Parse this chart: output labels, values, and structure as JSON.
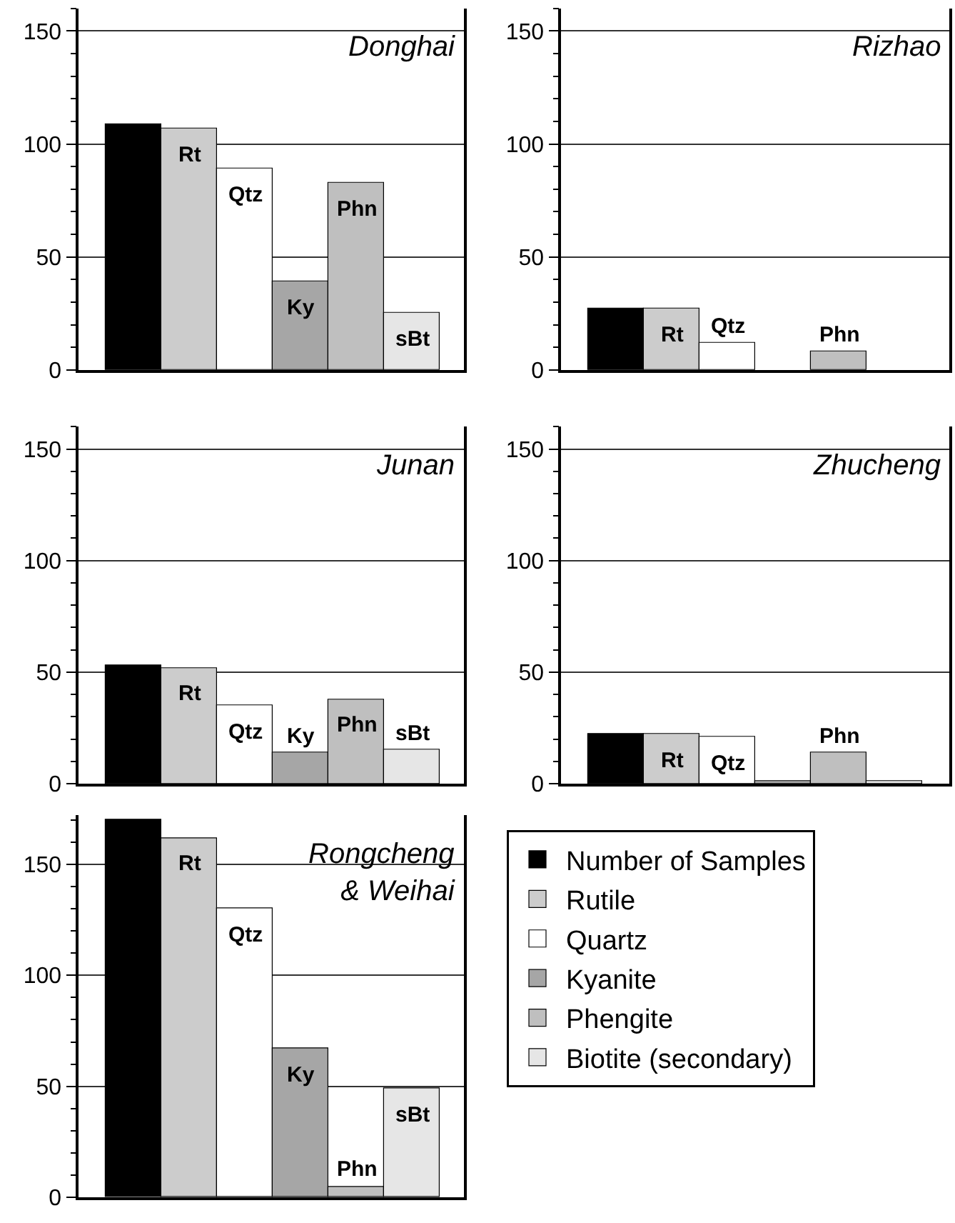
{
  "chart_data": [
    {
      "type": "bar",
      "title": "Donghai",
      "categories": [
        null,
        null,
        null,
        null,
        null,
        null
      ],
      "ylim": [
        0,
        160
      ],
      "yticks": [
        0,
        50,
        100,
        150
      ],
      "grid": "y",
      "series": [
        {
          "color": "#000000",
          "values": [
            109,
            null,
            null,
            null,
            null,
            null
          ]
        },
        {
          "color": "#cccccc",
          "values": [
            null,
            107,
            null,
            null,
            null,
            null
          ],
          "value_labels": [
            null,
            "Rt",
            null,
            null,
            null,
            null
          ]
        },
        {
          "color": "#ffffff",
          "values": [
            null,
            null,
            89,
            null,
            null,
            null
          ],
          "value_labels": [
            null,
            null,
            "Qtz",
            null,
            null,
            null
          ]
        },
        {
          "color": "#a6a6a6",
          "values": [
            null,
            null,
            null,
            39,
            null,
            null
          ],
          "value_labels": [
            null,
            null,
            null,
            "Ky",
            null,
            null
          ]
        },
        {
          "color": "#bfbfbf",
          "values": [
            null,
            null,
            null,
            null,
            83,
            null
          ],
          "value_labels": [
            null,
            null,
            null,
            null,
            "Phn",
            null
          ]
        },
        {
          "color": "#e6e6e6",
          "values": [
            null,
            null,
            null,
            null,
            null,
            25
          ],
          "value_labels": [
            null,
            null,
            null,
            null,
            null,
            "sBt"
          ]
        }
      ]
    },
    {
      "type": "bar",
      "title": "Rizhao",
      "categories": [
        null,
        null,
        null,
        null,
        null,
        null
      ],
      "ylim": [
        0,
        160
      ],
      "yticks": [
        0,
        50,
        100,
        150
      ],
      "grid": "y",
      "series": [
        {
          "color": "#000000",
          "values": [
            27,
            null,
            null,
            null,
            null,
            null
          ]
        },
        {
          "color": "#cccccc",
          "values": [
            null,
            27,
            null,
            null,
            null,
            null
          ],
          "value_labels": [
            null,
            "Rt",
            null,
            null,
            null,
            null
          ]
        },
        {
          "color": "#ffffff",
          "values": [
            null,
            null,
            12,
            null,
            null,
            null
          ],
          "value_labels": [
            null,
            null,
            "Qtz",
            null,
            null,
            null
          ]
        },
        {
          "color": "#bfbfbf",
          "values": [
            null,
            null,
            null,
            null,
            8,
            null
          ],
          "value_labels": [
            null,
            null,
            null,
            null,
            "Phn",
            null
          ]
        }
      ]
    },
    {
      "type": "bar",
      "title": "Junan",
      "categories": [
        null,
        null,
        null,
        null,
        null,
        null
      ],
      "ylim": [
        0,
        160
      ],
      "yticks": [
        0,
        50,
        100,
        150
      ],
      "grid": "y",
      "series": [
        {
          "color": "#000000",
          "values": [
            53,
            null,
            null,
            null,
            null,
            null
          ]
        },
        {
          "color": "#cccccc",
          "values": [
            null,
            52,
            null,
            null,
            null,
            null
          ],
          "value_labels": [
            null,
            "Rt",
            null,
            null,
            null,
            null
          ]
        },
        {
          "color": "#ffffff",
          "values": [
            null,
            null,
            35,
            null,
            null,
            null
          ],
          "value_labels": [
            null,
            null,
            "Qtz",
            null,
            null,
            null
          ]
        },
        {
          "color": "#a6a6a6",
          "values": [
            null,
            null,
            null,
            14,
            null,
            null
          ],
          "value_labels": [
            null,
            null,
            null,
            "Ky",
            null,
            null
          ]
        },
        {
          "color": "#bfbfbf",
          "values": [
            null,
            null,
            null,
            null,
            38,
            null
          ],
          "value_labels": [
            null,
            null,
            null,
            null,
            "Phn",
            null
          ]
        },
        {
          "color": "#e6e6e6",
          "values": [
            null,
            null,
            null,
            null,
            null,
            15
          ],
          "value_labels": [
            null,
            null,
            null,
            null,
            null,
            "sBt"
          ]
        }
      ]
    },
    {
      "type": "bar",
      "title": "Zhucheng",
      "categories": [
        null,
        null,
        null,
        null,
        null,
        null
      ],
      "ylim": [
        0,
        160
      ],
      "yticks": [
        0,
        50,
        100,
        150
      ],
      "grid": "y",
      "series": [
        {
          "color": "#000000",
          "values": [
            22,
            null,
            null,
            null,
            null,
            null
          ]
        },
        {
          "color": "#cccccc",
          "values": [
            null,
            22,
            null,
            null,
            null,
            null
          ],
          "value_labels": [
            null,
            "Rt",
            null,
            null,
            null,
            null
          ]
        },
        {
          "color": "#ffffff",
          "values": [
            null,
            null,
            21,
            null,
            null,
            null
          ],
          "value_labels": [
            null,
            null,
            "Qtz",
            null,
            null,
            null
          ]
        },
        {
          "color": "#a6a6a6",
          "values": [
            null,
            null,
            null,
            1,
            null,
            null
          ]
        },
        {
          "color": "#bfbfbf",
          "values": [
            null,
            null,
            null,
            null,
            14,
            null
          ],
          "value_labels": [
            null,
            null,
            null,
            null,
            "Phn",
            null
          ]
        },
        {
          "color": "#e6e6e6",
          "values": [
            null,
            null,
            null,
            null,
            null,
            1
          ]
        }
      ]
    },
    {
      "type": "bar",
      "title": "Rongcheng\n& Weihai",
      "categories": [
        null,
        null,
        null,
        null,
        null,
        null
      ],
      "ylim": [
        0,
        172
      ],
      "yticks": [
        0,
        50,
        100,
        150
      ],
      "grid": "y",
      "legend": "right",
      "series": [
        {
          "name": "Number of Samples",
          "color": "#000000",
          "values": [
            170,
            null,
            null,
            null,
            null,
            null
          ]
        },
        {
          "name": "Rutile",
          "color": "#cccccc",
          "values": [
            null,
            162,
            null,
            null,
            null,
            null
          ],
          "value_labels": [
            null,
            "Rt",
            null,
            null,
            null,
            null
          ]
        },
        {
          "name": "Quartz",
          "color": "#ffffff",
          "values": [
            null,
            null,
            130,
            null,
            null,
            null
          ],
          "value_labels": [
            null,
            null,
            "Qtz",
            null,
            null,
            null
          ]
        },
        {
          "name": "Kyanite",
          "color": "#a6a6a6",
          "values": [
            null,
            null,
            null,
            67,
            null,
            null
          ],
          "value_labels": [
            null,
            null,
            null,
            "Ky",
            null,
            null
          ]
        },
        {
          "name": "Phengite",
          "color": "#bfbfbf",
          "values": [
            null,
            null,
            null,
            null,
            5,
            null
          ],
          "value_labels": [
            null,
            null,
            null,
            null,
            "Phn",
            null
          ]
        },
        {
          "name": "Biotite (secondary)",
          "color": "#e6e6e6",
          "values": [
            null,
            null,
            null,
            null,
            null,
            49
          ],
          "value_labels": [
            null,
            null,
            null,
            null,
            null,
            "sBt"
          ]
        }
      ]
    }
  ]
}
